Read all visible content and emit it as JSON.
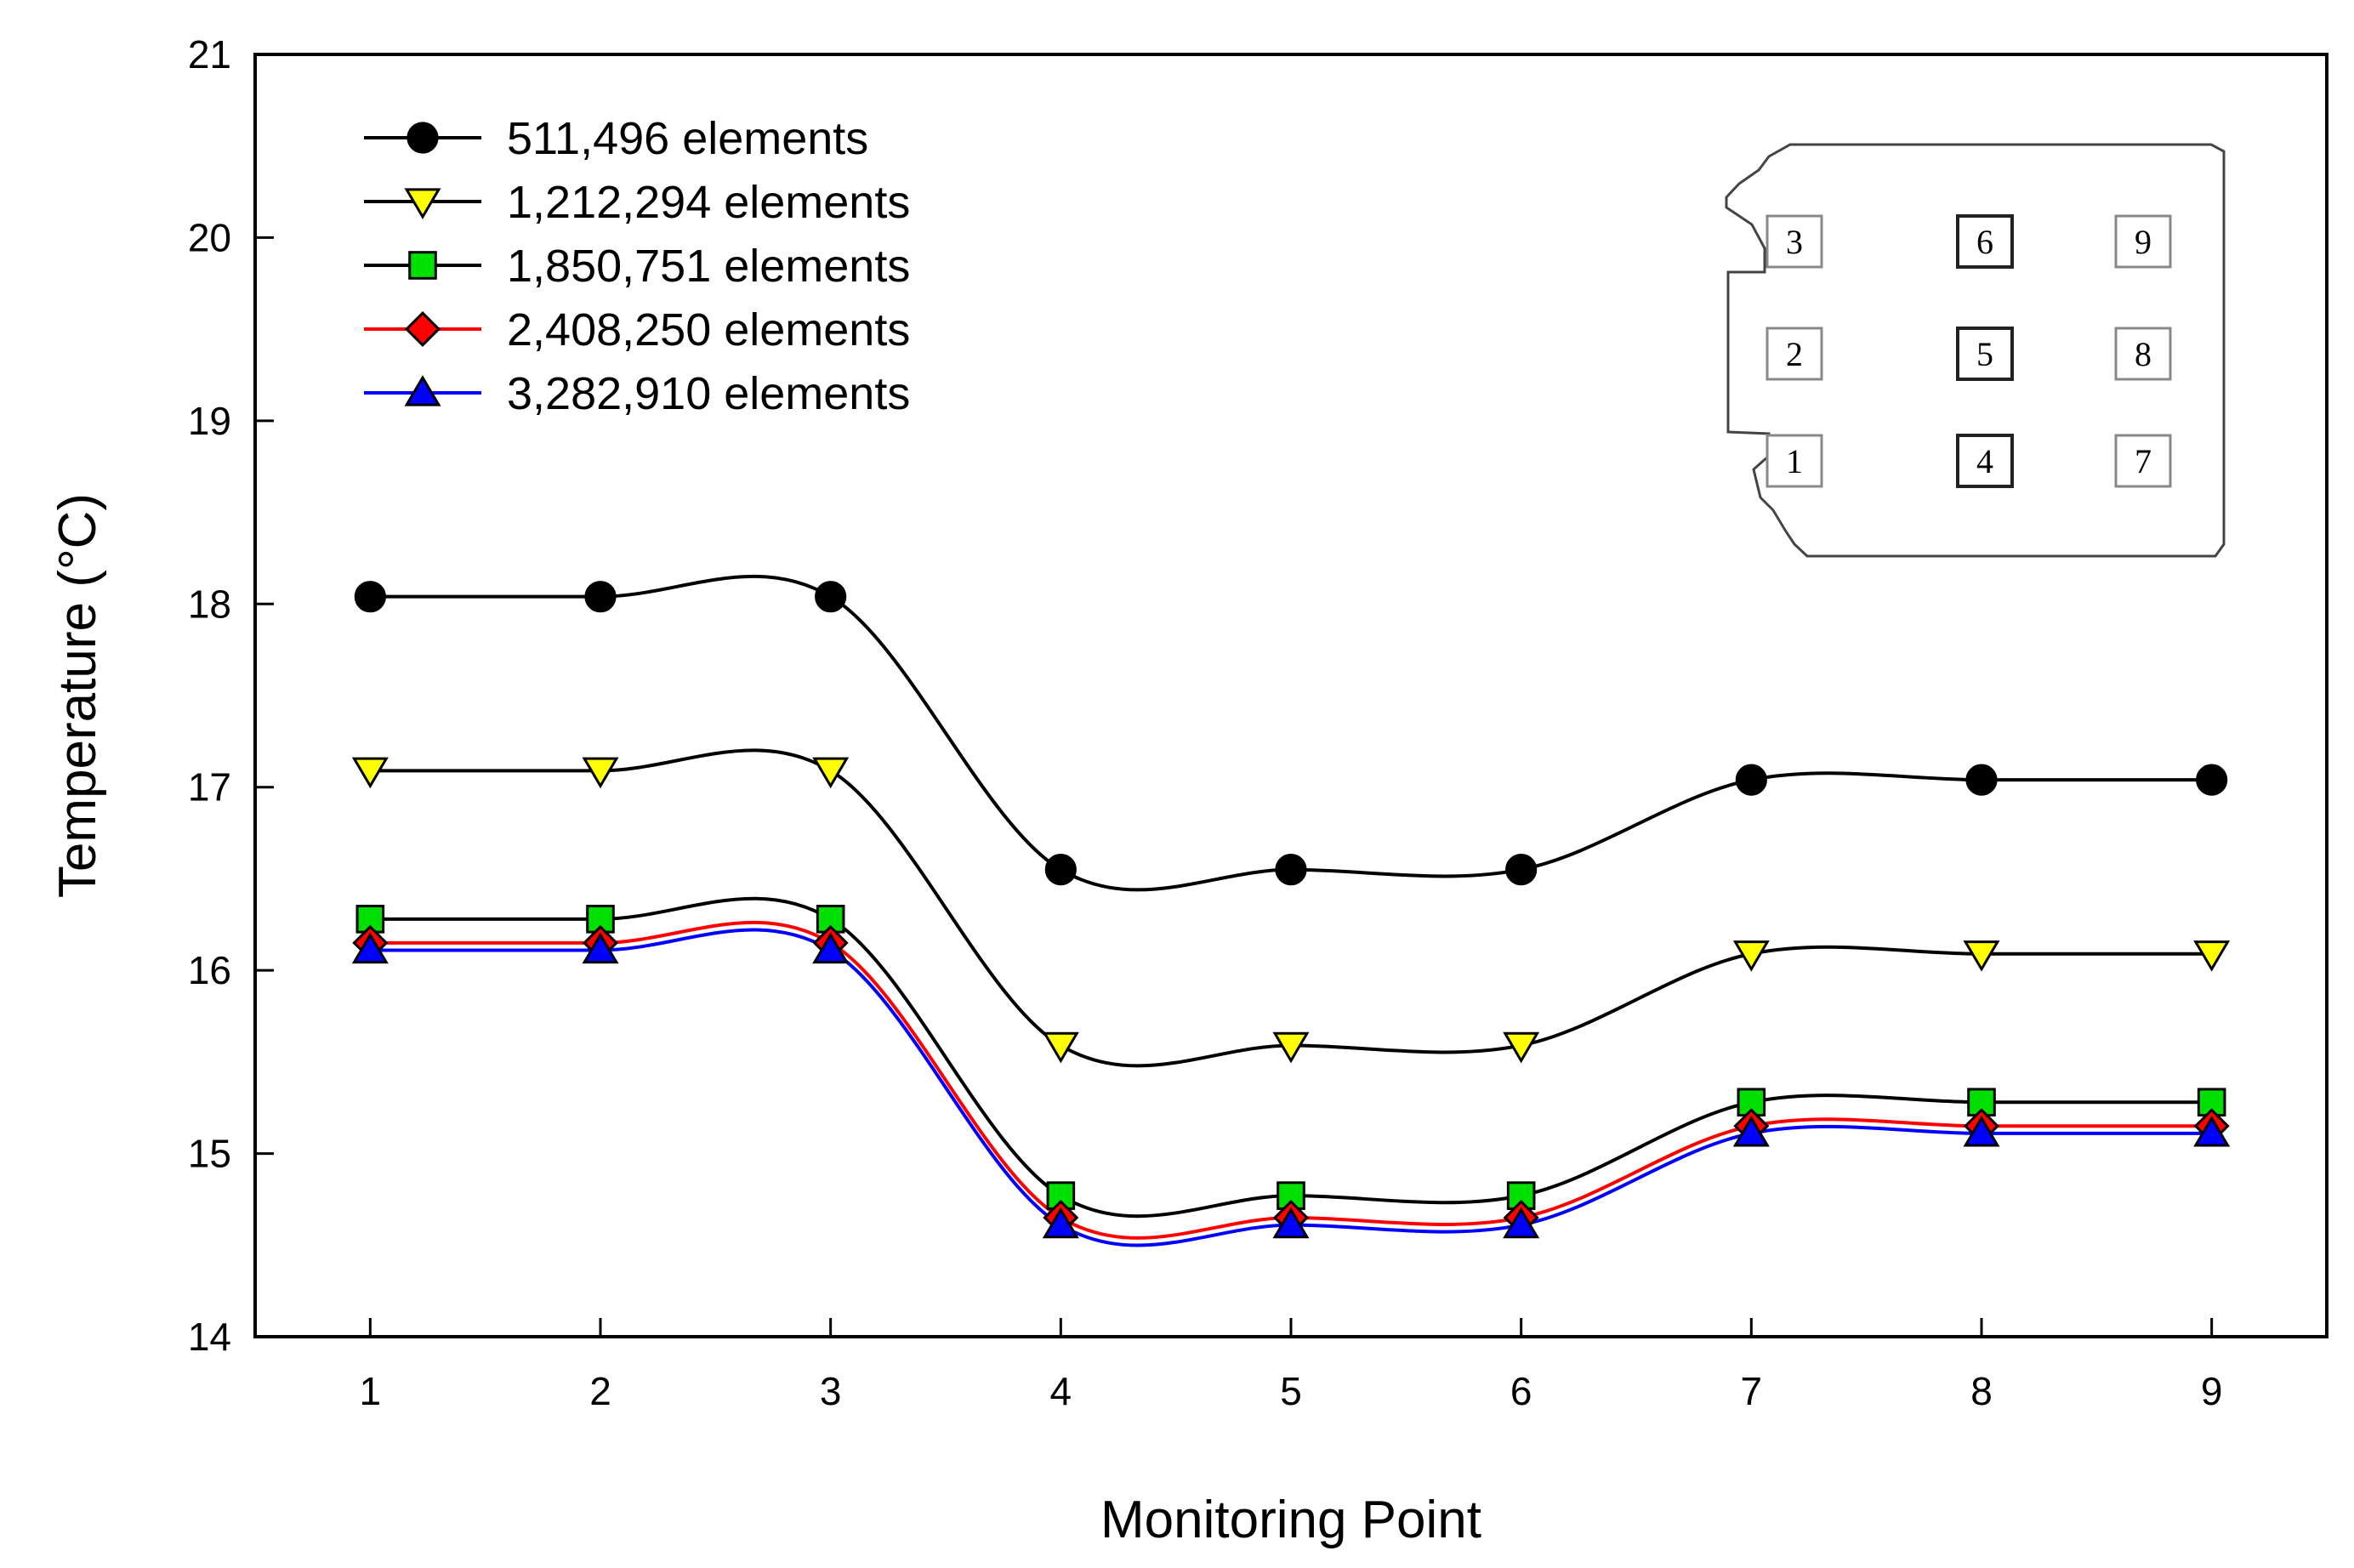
{
  "chart_data": {
    "type": "line",
    "title": "",
    "xlabel": "Monitoring Point",
    "ylabel": "Temperature (°C)",
    "x": [
      1,
      2,
      3,
      4,
      5,
      6,
      7,
      8,
      9
    ],
    "xlim": [
      0.5,
      9.5
    ],
    "ylim": [
      14,
      21
    ],
    "yticks": [
      14,
      15,
      16,
      17,
      18,
      19,
      20,
      21
    ],
    "xticks": [
      1,
      2,
      3,
      4,
      5,
      6,
      7,
      8,
      9
    ],
    "smooth": true,
    "legend_position": "top-left",
    "series": [
      {
        "name": "511,496 elements",
        "marker": "circle",
        "marker_color": "#000000",
        "line_color": "#000000",
        "values": [
          18.04,
          18.04,
          18.04,
          16.55,
          16.55,
          16.55,
          17.04,
          17.04,
          17.04
        ]
      },
      {
        "name": "1,212,294 elements",
        "marker": "triangle-down",
        "marker_color": "#ffff00",
        "line_color": "#000000",
        "values": [
          17.09,
          17.09,
          17.09,
          15.59,
          15.59,
          15.59,
          16.09,
          16.09,
          16.09
        ]
      },
      {
        "name": "1,850,751 elements",
        "marker": "square",
        "marker_color": "#00e000",
        "line_color": "#000000",
        "values": [
          16.28,
          16.28,
          16.28,
          14.77,
          14.77,
          14.77,
          15.28,
          15.28,
          15.28
        ]
      },
      {
        "name": "2,408,250 elements",
        "marker": "diamond",
        "marker_color": "#ff0000",
        "line_color": "#ff0000",
        "values": [
          16.15,
          16.15,
          16.15,
          14.65,
          14.65,
          14.65,
          15.15,
          15.15,
          15.15
        ]
      },
      {
        "name": "3,282,910 elements",
        "marker": "triangle-up",
        "marker_color": "#0000ff",
        "line_color": "#0000ff",
        "values": [
          16.11,
          16.11,
          16.11,
          14.61,
          14.61,
          14.61,
          15.11,
          15.11,
          15.11
        ]
      }
    ],
    "inset": {
      "description_labels": [
        "3",
        "6",
        "9",
        "2",
        "5",
        "8",
        "1",
        "4",
        "7"
      ]
    }
  }
}
